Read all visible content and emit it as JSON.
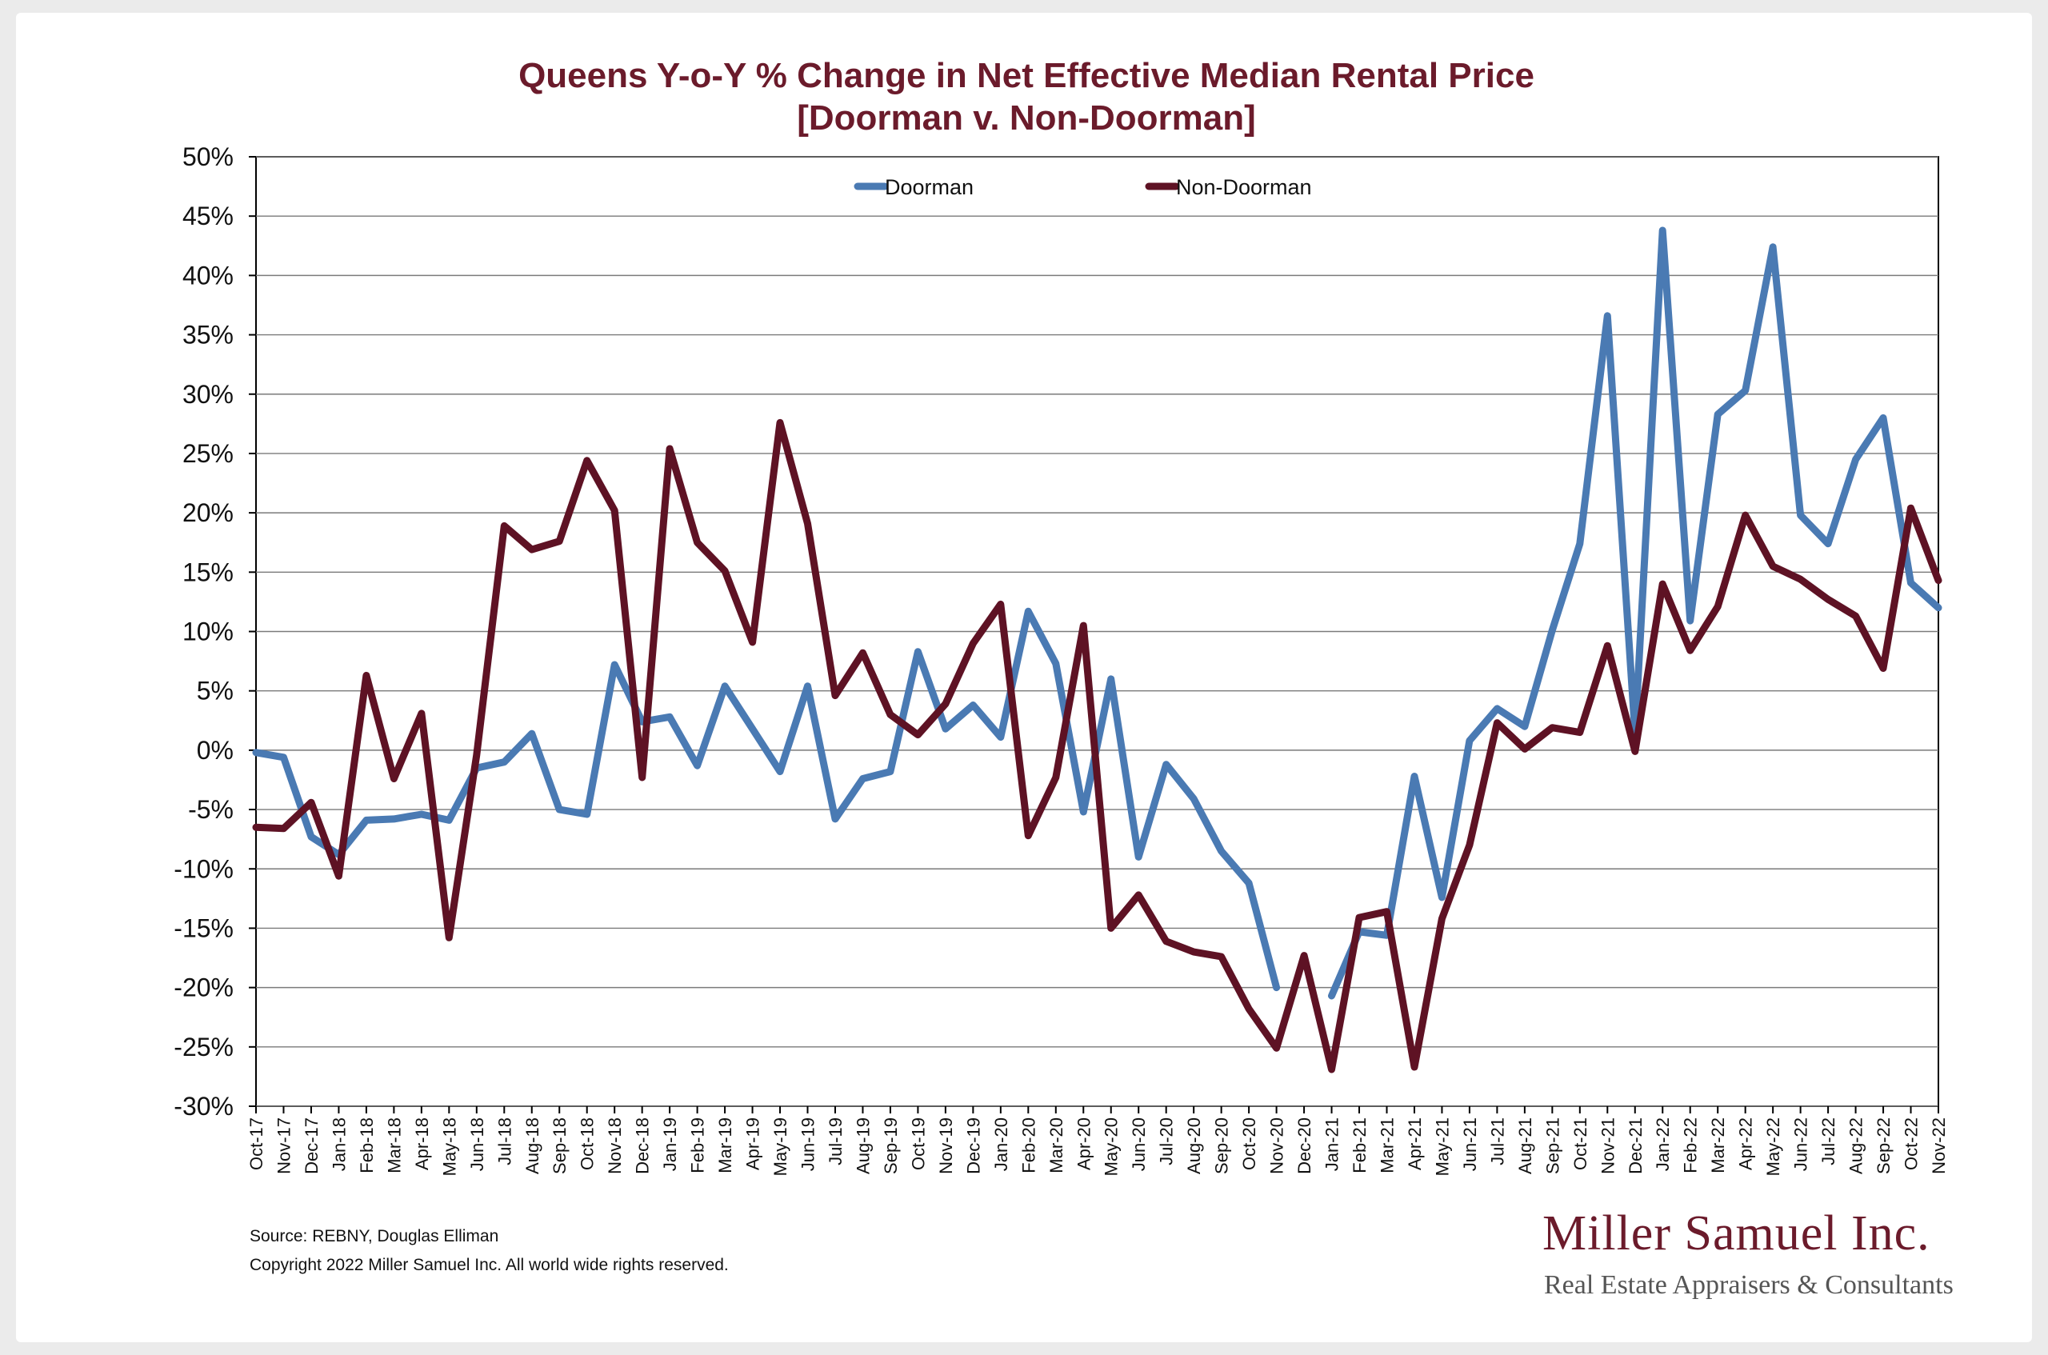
{
  "chart_data": {
    "type": "line",
    "title": "Queens Y-o-Y % Change in Net Effective Median Rental Price",
    "subtitle": "[Doorman v. Non-Doorman]",
    "ylim": [
      -30,
      50
    ],
    "yticks": [
      "50%",
      "45%",
      "40%",
      "35%",
      "30%",
      "25%",
      "20%",
      "15%",
      "10%",
      "5%",
      "0%",
      "-5%",
      "-10%",
      "-15%",
      "-20%",
      "-25%",
      "-30%"
    ],
    "ytick_values": [
      50,
      45,
      40,
      35,
      30,
      25,
      20,
      15,
      10,
      5,
      0,
      -5,
      -10,
      -15,
      -20,
      -25,
      -30
    ],
    "grid": "horizontal",
    "legend_position": "top-center",
    "categories": [
      "Oct-17",
      "Nov-17",
      "Dec-17",
      "Jan-18",
      "Feb-18",
      "Mar-18",
      "Apr-18",
      "May-18",
      "Jun-18",
      "Jul-18",
      "Aug-18",
      "Sep-18",
      "Oct-18",
      "Nov-18",
      "Dec-18",
      "Jan-19",
      "Feb-19",
      "Mar-19",
      "Apr-19",
      "May-19",
      "Jun-19",
      "Jul-19",
      "Aug-19",
      "Sep-19",
      "Oct-19",
      "Nov-19",
      "Dec-19",
      "Jan-20",
      "Feb-20",
      "Mar-20",
      "Apr-20",
      "May-20",
      "Jun-20",
      "Jul-20",
      "Aug-20",
      "Sep-20",
      "Oct-20",
      "Nov-20",
      "Dec-20",
      "Jan-21",
      "Feb-21",
      "Mar-21",
      "Apr-21",
      "May-21",
      "Jun-21",
      "Jul-21",
      "Aug-21",
      "Sep-21",
      "Oct-21",
      "Nov-21",
      "Dec-21",
      "Jan-22",
      "Feb-22",
      "Mar-22",
      "Apr-22",
      "May-22",
      "Jun-22",
      "Jul-22",
      "Aug-22",
      "Sep-22",
      "Oct-22",
      "Nov-22"
    ],
    "series": [
      {
        "name": "Doorman",
        "color": "#4a7ab3",
        "values": [
          -0.2,
          -0.6,
          -7.3,
          -8.8,
          -5.9,
          -5.8,
          -5.4,
          -5.9,
          -1.5,
          -1.0,
          1.4,
          -5.0,
          -5.4,
          7.2,
          2.4,
          2.8,
          -1.3,
          5.4,
          1.8,
          -1.8,
          5.4,
          -5.8,
          -2.4,
          -1.8,
          8.3,
          1.8,
          3.8,
          1.1,
          11.7,
          7.3,
          -5.2,
          6.0,
          -9.0,
          -1.2,
          -4.1,
          -8.5,
          -11.2,
          -20.0,
          null,
          -20.7,
          -15.3,
          -15.6,
          -2.2,
          -12.4,
          0.8,
          3.5,
          2.0,
          10.1,
          17.4,
          36.6,
          1.4,
          43.8,
          10.9,
          28.3,
          30.3,
          42.4,
          19.8,
          17.4,
          24.5,
          28.0,
          14.1,
          12.0
        ]
      },
      {
        "name": "Non-Doorman",
        "color": "#5e1224",
        "values": [
          -6.5,
          -6.6,
          -4.4,
          -10.6,
          6.3,
          -2.4,
          3.1,
          -15.8,
          -0.4,
          18.9,
          16.9,
          17.6,
          24.4,
          20.2,
          -2.3,
          25.4,
          17.5,
          15.1,
          9.1,
          27.6,
          19.1,
          4.6,
          8.2,
          3.0,
          1.3,
          3.9,
          9.0,
          12.3,
          -7.2,
          -2.3,
          10.5,
          -15.0,
          -12.2,
          -16.1,
          -17.0,
          -17.4,
          -21.8,
          -25.1,
          -17.3,
          -26.9,
          -14.1,
          -13.6,
          -26.7,
          -14.2,
          -8.0,
          2.3,
          0.1,
          1.9,
          1.5,
          8.8,
          -0.1,
          14.0,
          8.4,
          12.1,
          19.8,
          15.5,
          14.4,
          12.7,
          11.3,
          6.9,
          20.4,
          14.3
        ]
      }
    ]
  },
  "footer": {
    "source": "Source: REBNY, Douglas Elliman",
    "copyright": "Copyright 2022 Miller Samuel Inc.  All world wide rights reserved."
  },
  "logo": {
    "name": "Miller Samuel Inc.",
    "tagline": "Real Estate Appraisers & Consultants"
  }
}
